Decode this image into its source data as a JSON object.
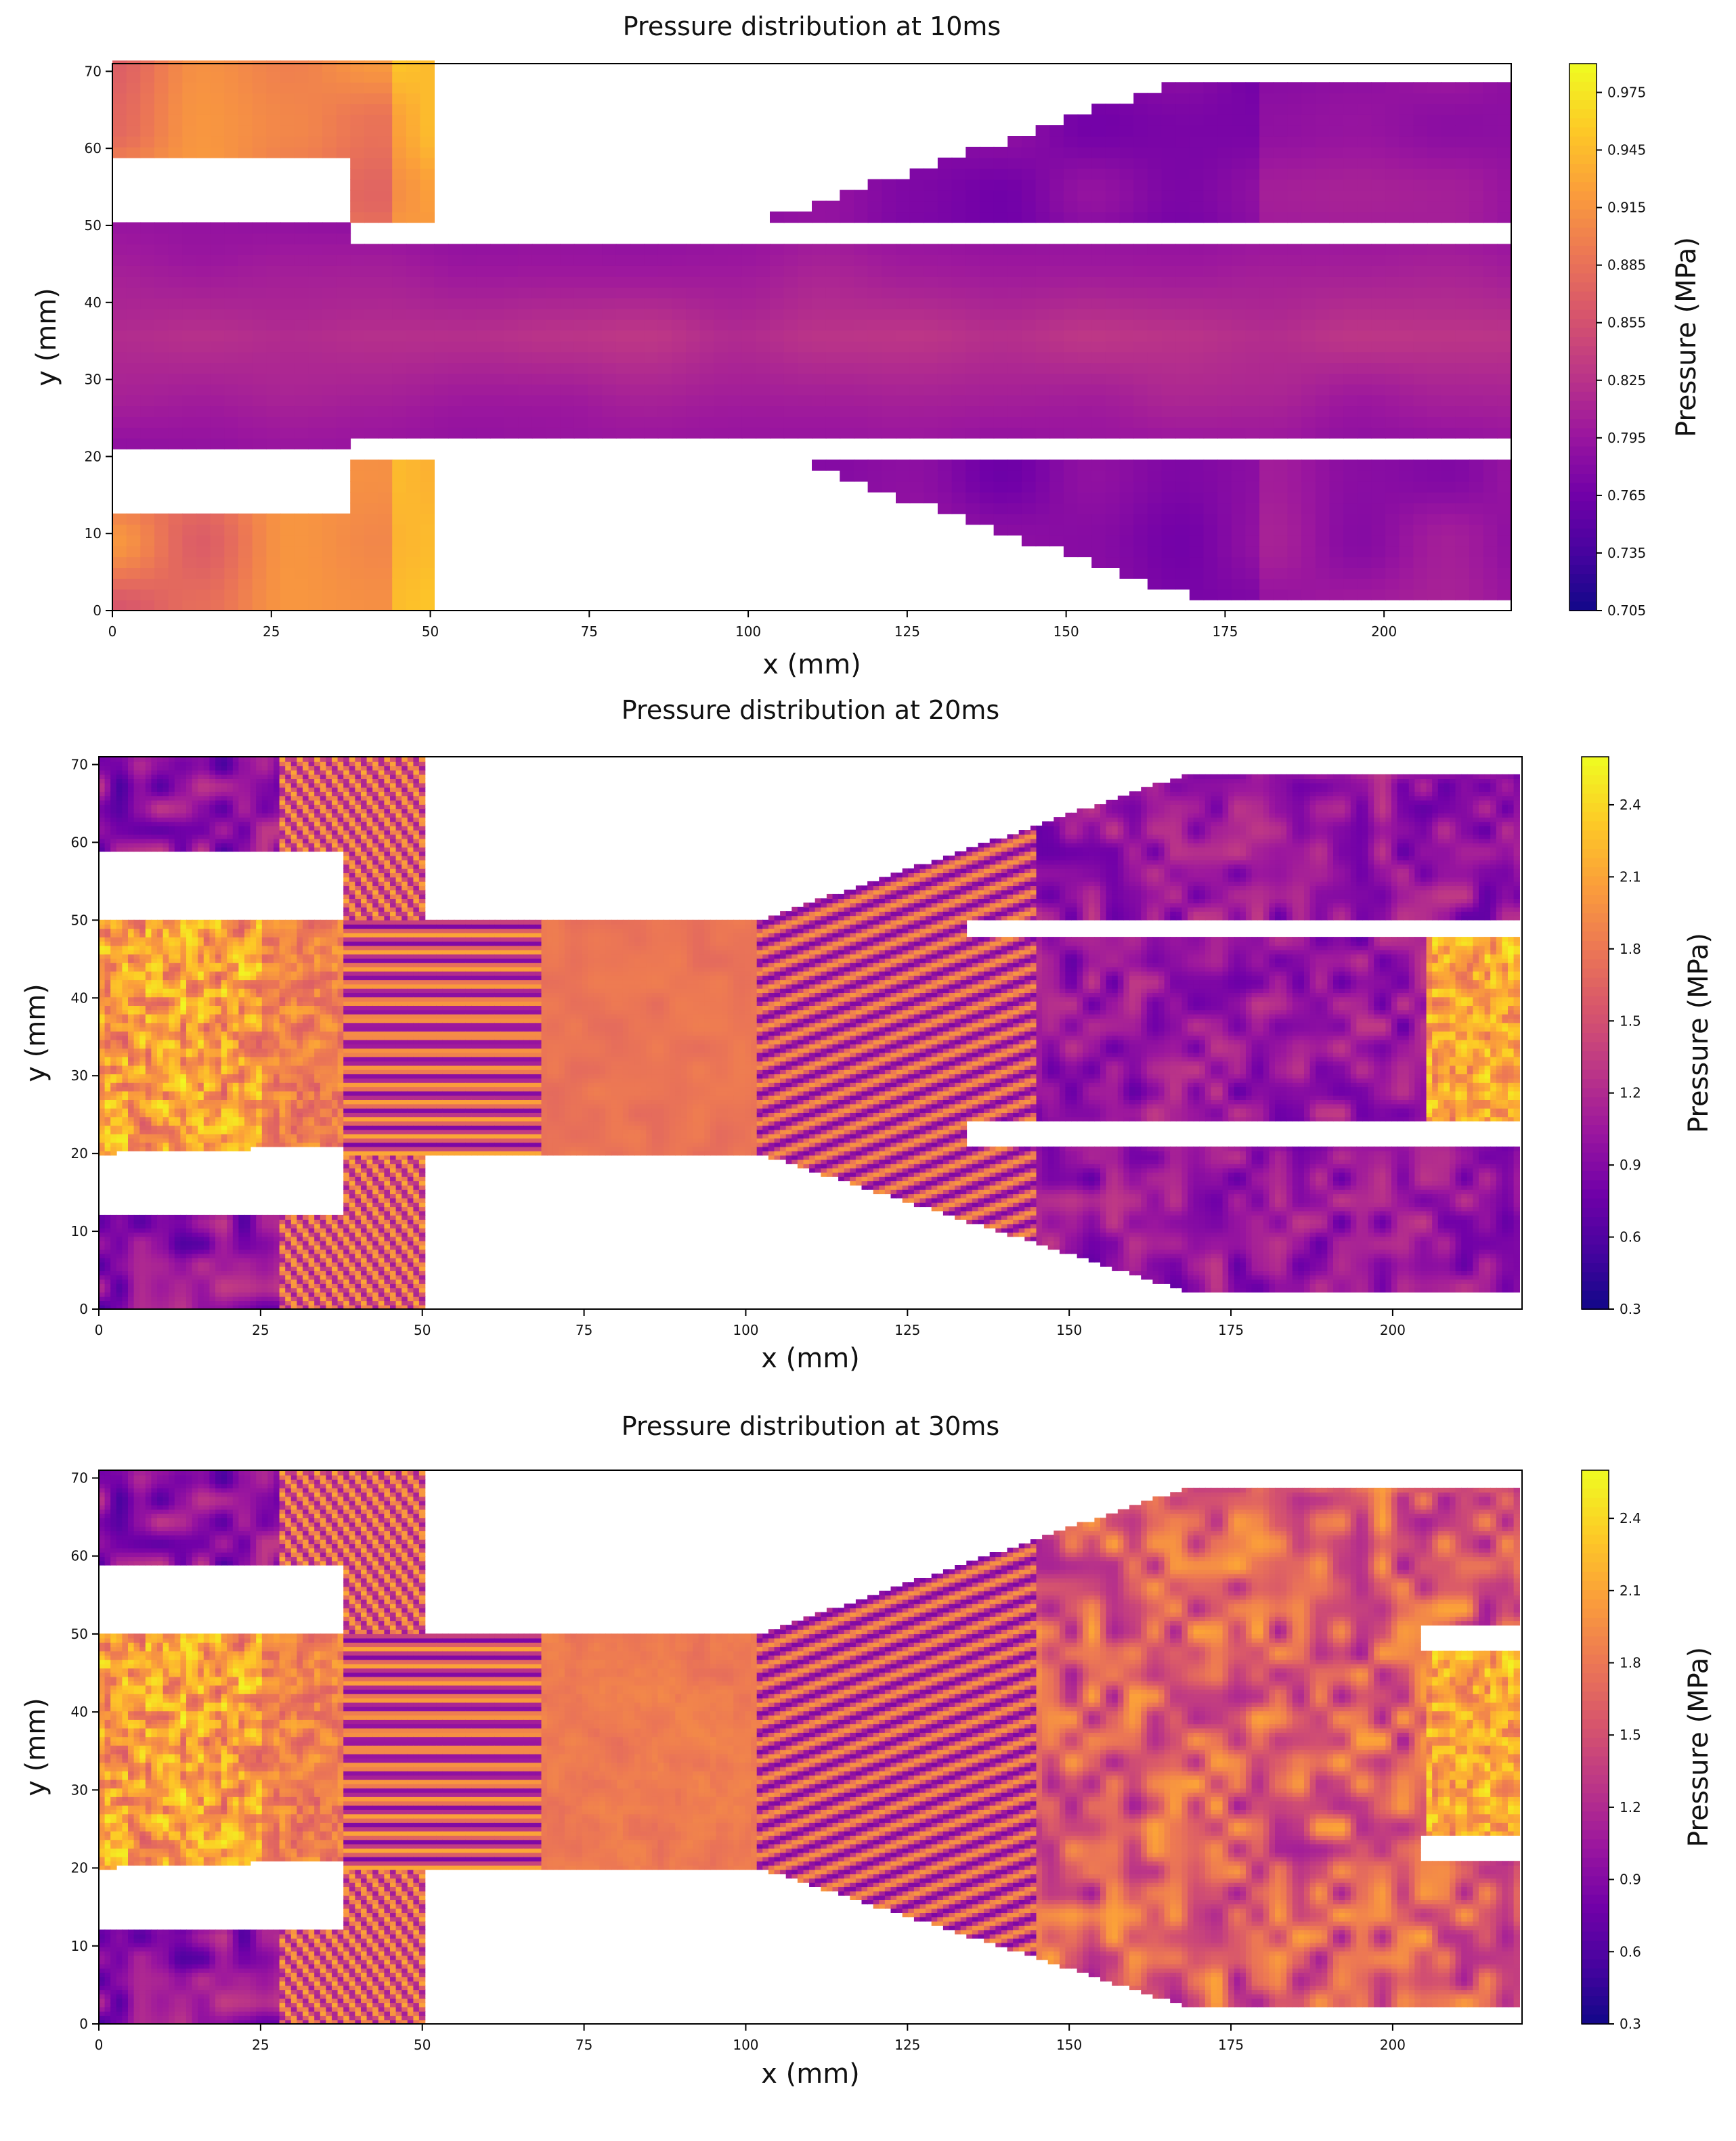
{
  "colors": {
    "plasma": [
      "#0d0887",
      "#46039f",
      "#7201a8",
      "#9c179e",
      "#bd3786",
      "#d8576b",
      "#ed7953",
      "#fb9f3a",
      "#fdca26",
      "#f0f921"
    ],
    "frame": "#000000",
    "background": "#ffffff"
  },
  "chart_data": [
    {
      "type": "heatmap",
      "title": "Pressure distribution at 10ms",
      "xlabel": "x (mm)",
      "ylabel": "y (mm)",
      "xlim": [
        0,
        220
      ],
      "ylim": [
        0,
        71
      ],
      "xticks": [
        "0",
        "25",
        "50",
        "75",
        "100",
        "125",
        "150",
        "175",
        "200"
      ],
      "yticks": [
        "0",
        "10",
        "20",
        "30",
        "40",
        "50",
        "60",
        "70"
      ],
      "colorbar": {
        "label": "Pressure (MPa)",
        "range": [
          0.705,
          0.99
        ],
        "ticks": [
          "0.705",
          "0.735",
          "0.765",
          "0.795",
          "0.825",
          "0.855",
          "0.885",
          "0.915",
          "0.945",
          "0.975"
        ]
      },
      "field": "smooth",
      "regions": [
        {
          "name": "upper-left-chamber",
          "pressure": 0.86
        },
        {
          "name": "lower-left-chamber",
          "pressure": 0.87
        },
        {
          "name": "central-channel",
          "pressure": 0.79
        },
        {
          "name": "upper-right-outlet",
          "pressure": 0.76
        },
        {
          "name": "lower-right-outlet",
          "pressure": 0.77
        }
      ]
    },
    {
      "type": "heatmap",
      "title": "Pressure distribution at 20ms",
      "xlabel": "x (mm)",
      "ylabel": "y (mm)",
      "xlim": [
        0,
        220
      ],
      "ylim": [
        0,
        71
      ],
      "xticks": [
        "0",
        "25",
        "50",
        "75",
        "100",
        "125",
        "150",
        "175",
        "200"
      ],
      "yticks": [
        "0",
        "10",
        "20",
        "30",
        "40",
        "50",
        "60",
        "70"
      ],
      "colorbar": {
        "label": "Pressure (MPa)",
        "range": [
          0.3,
          2.6
        ],
        "ticks": [
          "0.3",
          "0.6",
          "0.9",
          "1.2",
          "1.5",
          "1.8",
          "2.1",
          "2.4"
        ]
      },
      "field": "striated",
      "regions": [
        {
          "name": "left-inlet",
          "pressure": 1.9
        },
        {
          "name": "throat",
          "pressure": 1.75
        },
        {
          "name": "expansion",
          "pressure": 1.1
        },
        {
          "name": "right-outlet",
          "pressure": 0.7
        }
      ]
    },
    {
      "type": "heatmap",
      "title": "Pressure distribution at 30ms",
      "xlabel": "x (mm)",
      "ylabel": "y (mm)",
      "xlim": [
        0,
        220
      ],
      "ylim": [
        0,
        71
      ],
      "xticks": [
        "0",
        "25",
        "50",
        "75",
        "100",
        "125",
        "150",
        "175",
        "200"
      ],
      "yticks": [
        "0",
        "10",
        "20",
        "30",
        "40",
        "50",
        "60",
        "70"
      ],
      "colorbar": {
        "label": "Pressure (MPa)",
        "range": [
          0.3,
          2.6
        ],
        "ticks": [
          "0.3",
          "0.6",
          "0.9",
          "1.2",
          "1.5",
          "1.8",
          "2.1",
          "2.4"
        ]
      },
      "field": "turbulent",
      "regions": [
        {
          "name": "left-inlet",
          "pressure": 1.9
        },
        {
          "name": "throat",
          "pressure": 1.75
        },
        {
          "name": "expansion",
          "pressure": 1.2
        },
        {
          "name": "right-outlet",
          "pressure": 1.0
        }
      ]
    }
  ]
}
